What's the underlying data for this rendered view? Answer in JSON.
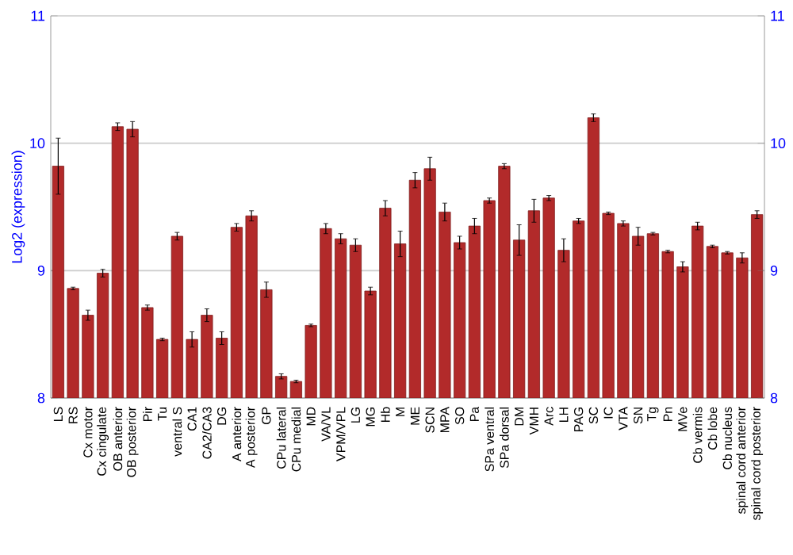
{
  "chart_data": {
    "type": "bar",
    "ylabel": "Log2 (expression)",
    "color": "#b22a2a",
    "categories": [
      "LS",
      "RS",
      "Cx motor",
      "Cx cingulate",
      "OB anterior",
      "OB posterior",
      "Pir",
      "Tu",
      "ventral S",
      "CA1",
      "CA2/CA3",
      "DG",
      "A anterior",
      "A posterior",
      "GP",
      "CPu lateral",
      "CPu medial",
      "MD",
      "VA/VL",
      "VPM/VPL",
      "LG",
      "MG",
      "Hb",
      "M",
      "ME",
      "SCN",
      "MPA",
      "SO",
      "Pa",
      "SPa ventral",
      "SPa dorsal",
      "DM",
      "VMH",
      "Arc",
      "LH",
      "PAG",
      "SC",
      "IC",
      "VTA",
      "SN",
      "Tg",
      "Pn",
      "MVe",
      "Cb vermis",
      "Cb lobe",
      "Cb nucleus",
      "spinal cord anterior",
      "spinal cord posterior"
    ],
    "values": [
      9.82,
      8.86,
      8.65,
      8.98,
      10.13,
      10.11,
      8.71,
      8.46,
      9.27,
      8.46,
      8.65,
      8.47,
      9.34,
      9.43,
      8.85,
      8.17,
      8.13,
      8.57,
      9.33,
      9.25,
      9.2,
      8.84,
      9.49,
      9.21,
      9.71,
      9.8,
      9.46,
      9.22,
      9.35,
      9.55,
      9.82,
      9.24,
      9.47,
      9.57,
      9.16,
      9.39,
      10.2,
      9.45,
      9.37,
      9.27,
      9.29,
      9.15,
      9.03,
      9.35,
      9.19,
      9.14,
      9.1,
      9.44
    ],
    "errors": [
      0.22,
      0.01,
      0.04,
      0.03,
      0.03,
      0.06,
      0.02,
      0.01,
      0.03,
      0.06,
      0.05,
      0.05,
      0.03,
      0.04,
      0.06,
      0.02,
      0.01,
      0.01,
      0.04,
      0.04,
      0.05,
      0.03,
      0.06,
      0.1,
      0.06,
      0.09,
      0.07,
      0.05,
      0.06,
      0.02,
      0.02,
      0.12,
      0.09,
      0.02,
      0.09,
      0.02,
      0.03,
      0.01,
      0.02,
      0.07,
      0.01,
      0.01,
      0.04,
      0.03,
      0.01,
      0.01,
      0.04,
      0.03
    ],
    "ylim": [
      8,
      11
    ],
    "yticks": [
      8,
      9,
      10,
      11
    ],
    "y2lim": [
      8,
      11
    ],
    "y2ticks": [
      8,
      9,
      10,
      11
    ],
    "grid": "y"
  }
}
